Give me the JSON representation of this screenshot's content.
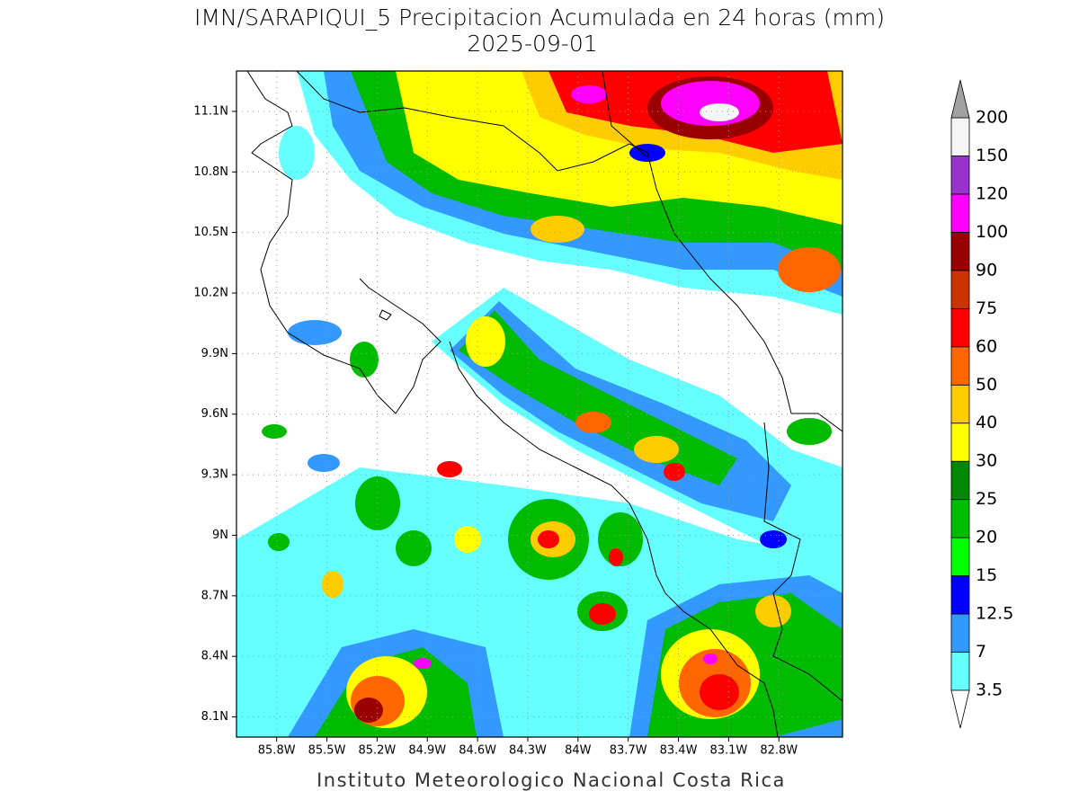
{
  "chart_data": {
    "type": "map",
    "title": "IMN/SARAPIQUI_5 Precipitacion Acumulada en 24 horas (mm)",
    "subtitle": "2025-09-01",
    "credit": "Instituto Meteorologico Nacional Costa Rica",
    "xlim": [
      -86.04,
      -82.42
    ],
    "ylim": [
      8.0,
      11.3
    ],
    "xticks": [
      {
        "value": -85.8,
        "label": "85.8W"
      },
      {
        "value": -85.5,
        "label": "85.5W"
      },
      {
        "value": -85.2,
        "label": "85.2W"
      },
      {
        "value": -84.9,
        "label": "84.9W"
      },
      {
        "value": -84.6,
        "label": "84.6W"
      },
      {
        "value": -84.3,
        "label": "84.3W"
      },
      {
        "value": -84.0,
        "label": "84W"
      },
      {
        "value": -83.7,
        "label": "83.7W"
      },
      {
        "value": -83.4,
        "label": "83.4W"
      },
      {
        "value": -83.1,
        "label": "83.1W"
      },
      {
        "value": -82.8,
        "label": "82.8W"
      }
    ],
    "yticks": [
      {
        "value": 8.1,
        "label": "8.1N"
      },
      {
        "value": 8.4,
        "label": "8.4N"
      },
      {
        "value": 8.7,
        "label": "8.7N"
      },
      {
        "value": 9.0,
        "label": "9N"
      },
      {
        "value": 9.3,
        "label": "9.3N"
      },
      {
        "value": 9.6,
        "label": "9.6N"
      },
      {
        "value": 9.9,
        "label": "9.9N"
      },
      {
        "value": 10.2,
        "label": "10.2N"
      },
      {
        "value": 10.5,
        "label": "10.5N"
      },
      {
        "value": 10.8,
        "label": "10.8N"
      },
      {
        "value": 11.1,
        "label": "11.1N"
      }
    ],
    "grid": true,
    "colorbar": {
      "levels": [
        3.5,
        7,
        12.5,
        15,
        20,
        25,
        30,
        40,
        50,
        60,
        75,
        90,
        100,
        120,
        150,
        200
      ],
      "colors": [
        "#66ffff",
        "#3399ff",
        "#0000ff",
        "#00ff00",
        "#00bb00",
        "#008800",
        "#ffff00",
        "#ffcc00",
        "#ff6600",
        "#ff0000",
        "#cc3300",
        "#990000",
        "#ff00ff",
        "#9933cc",
        "#f5f5f5"
      ],
      "under_color": "#ffffff",
      "over_color": "#a0a0a0"
    }
  }
}
